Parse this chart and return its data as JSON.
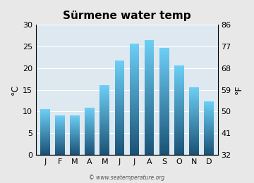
{
  "title": "Sürmene water temp",
  "months": [
    "J",
    "F",
    "M",
    "A",
    "M",
    "J",
    "J",
    "A",
    "S",
    "O",
    "N",
    "D"
  ],
  "temps_c": [
    10.5,
    9.1,
    9.1,
    10.9,
    16.0,
    21.8,
    25.6,
    26.5,
    24.7,
    20.6,
    15.5,
    12.3
  ],
  "ylim_c": [
    0,
    30
  ],
  "yticks_c": [
    0,
    5,
    10,
    15,
    20,
    25,
    30
  ],
  "yticks_f": [
    32,
    41,
    50,
    59,
    68,
    77,
    86
  ],
  "ylabel_left": "°C",
  "ylabel_right": "°F",
  "bar_color_top": "#6dcff6",
  "bar_color_bottom": "#1a5276",
  "background_color": "#e8e8e8",
  "plot_bg_color": "#dde8f0",
  "title_fontsize": 11,
  "axis_fontsize": 8,
  "watermark": "© www.seatemperature.org"
}
